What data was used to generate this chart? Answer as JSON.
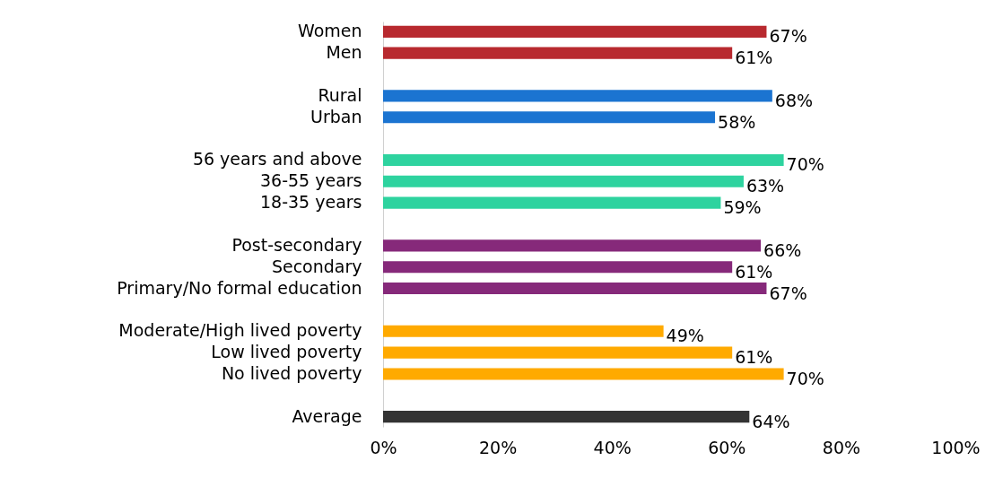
{
  "chart_data": {
    "type": "bar",
    "orientation": "horizontal",
    "categories": [
      "Women",
      "Men",
      null,
      "Rural",
      "Urban",
      null,
      "56 years and above",
      "36-55 years",
      "18-35 years",
      null,
      "Post-secondary",
      "Secondary",
      "Primary/No formal education",
      null,
      "Moderate/High lived poverty",
      "Low lived poverty",
      "No lived poverty",
      null,
      "Average"
    ],
    "values": [
      67,
      61,
      null,
      68,
      58,
      null,
      70,
      63,
      59,
      null,
      66,
      61,
      67,
      null,
      49,
      61,
      70,
      null,
      64
    ],
    "value_labels": [
      "67%",
      "61%",
      null,
      "68%",
      "58%",
      null,
      "70%",
      "63%",
      "59%",
      null,
      "66%",
      "61%",
      "67%",
      null,
      "49%",
      "61%",
      "70%",
      null,
      "64%"
    ],
    "colors": [
      "#b8292f",
      "#b8292f",
      null,
      "#1b74d1",
      "#1b74d1",
      null,
      "#2ed39f",
      "#2ed39f",
      "#2ed39f",
      null,
      "#86297a",
      "#86297a",
      "#86297a",
      null,
      "#ffaa00",
      "#ffaa00",
      "#ffaa00",
      null,
      "#333333"
    ],
    "xlim": [
      0,
      100
    ],
    "xticks": [
      {
        "value": 0,
        "label": "0%"
      },
      {
        "value": 20,
        "label": "20%"
      },
      {
        "value": 40,
        "label": "40%"
      },
      {
        "value": 60,
        "label": "60%"
      },
      {
        "value": 80,
        "label": "80%"
      },
      {
        "value": 100,
        "label": "100%"
      }
    ],
    "grid": false
  }
}
